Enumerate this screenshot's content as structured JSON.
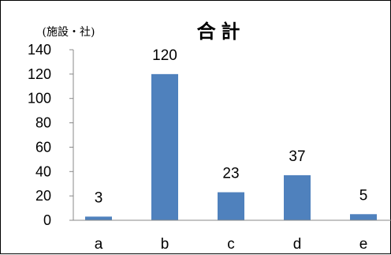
{
  "chart_data": {
    "type": "bar",
    "title": "合 計",
    "unit_label": "(施設・社)",
    "xlabel": "",
    "ylabel": "",
    "categories": [
      "a",
      "b",
      "c",
      "d",
      "e"
    ],
    "values": [
      3,
      120,
      23,
      37,
      5
    ],
    "data_labels": [
      "3",
      "120",
      "23",
      "37",
      "5"
    ],
    "ylim": [
      0,
      140
    ],
    "yticks": [
      "0",
      "20",
      "40",
      "60",
      "80",
      "100",
      "120",
      "140"
    ],
    "grid": false,
    "legend": "none",
    "bar_color": "#4f81bd"
  }
}
